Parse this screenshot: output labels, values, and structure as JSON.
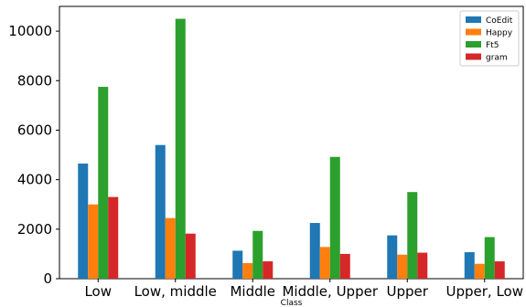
{
  "chart_data": {
    "type": "bar",
    "title": "",
    "xlabel": "Class",
    "ylabel": "",
    "categories": [
      "Low",
      "Low, middle",
      "Middle",
      "Middle, Upper",
      "Upper",
      "Upper, Low"
    ],
    "series": [
      {
        "name": "CoEdit",
        "color": "#1f77b4",
        "values": [
          4650,
          5400,
          1130,
          2250,
          1750,
          1070
        ]
      },
      {
        "name": "Happy",
        "color": "#ff7f0e",
        "values": [
          3000,
          2450,
          630,
          1280,
          970,
          600
        ]
      },
      {
        "name": "Ft5",
        "color": "#2ca02c",
        "values": [
          7750,
          10500,
          1930,
          4920,
          3500,
          1680
        ]
      },
      {
        "name": "gram",
        "color": "#d62728",
        "values": [
          3300,
          1820,
          700,
          1000,
          1050,
          700
        ]
      }
    ],
    "ylim": [
      0,
      11000
    ],
    "yticks": [
      0,
      2000,
      4000,
      6000,
      8000,
      10000
    ],
    "ytick_labels": [
      "0",
      "2000",
      "4000",
      "6000",
      "8000",
      "10000"
    ],
    "grid": false,
    "legend_position": "top-right"
  }
}
